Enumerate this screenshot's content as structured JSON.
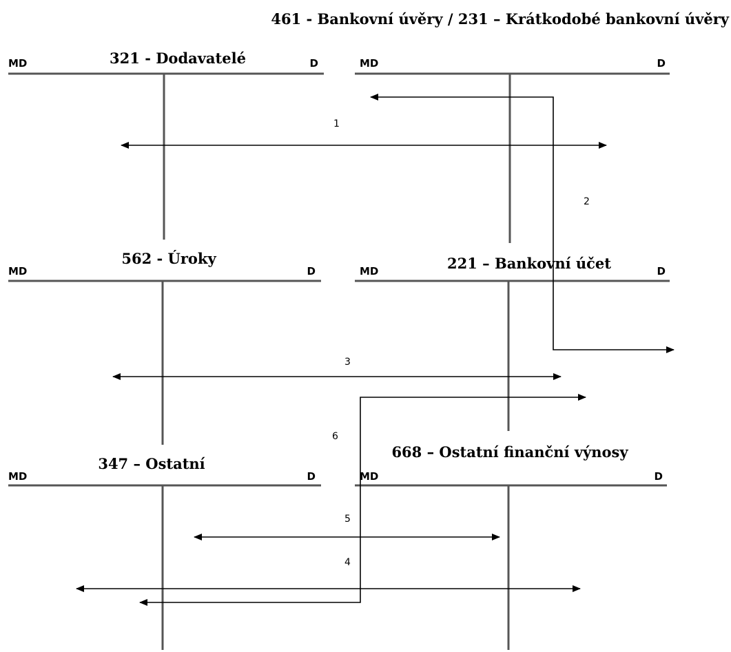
{
  "header_title": "461 -   Bankovní úvěry / 231 – Krátkodobé bankovní úvěry",
  "side_labels": {
    "debit": "MD",
    "credit": "D"
  },
  "accounts": [
    {
      "id": "321",
      "title": "321 - Dodavatelé"
    },
    {
      "id": "461",
      "title": ""
    },
    {
      "id": "562",
      "title": "562 - Úroky"
    },
    {
      "id": "221",
      "title": "221 – Bankovní účet"
    },
    {
      "id": "347",
      "title": "347 – Ostatní"
    },
    {
      "id": "668",
      "title": "668 – Ostatní finanční výnosy"
    }
  ],
  "transactions": [
    "1",
    "2",
    "3",
    "4",
    "5",
    "6"
  ],
  "colors": {
    "account_line": "#555555",
    "arrow": "#000000"
  }
}
